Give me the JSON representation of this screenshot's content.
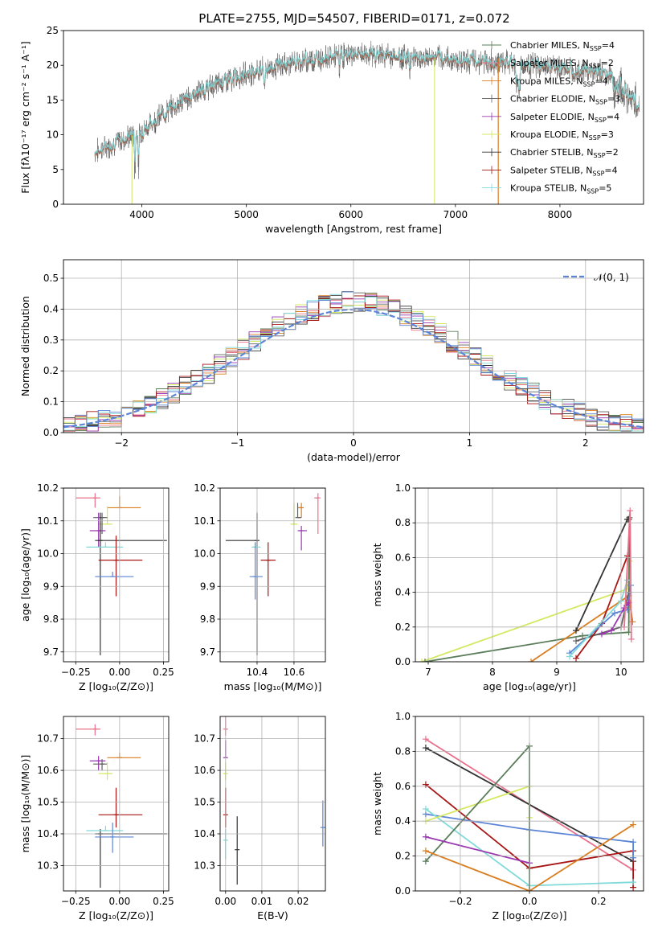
{
  "title": "PLATE=2755, MJD=54507, FIBERID=0171, z=0.072",
  "colors": {
    "chabrier_miles": "#5a7d5a",
    "salpeter_miles": "#e8708a",
    "kroupa_miles": "#d97d1f",
    "chabrier_elodie": "#5f5f5f",
    "salpeter_elodie": "#9a36b0",
    "kroupa_elodie": "#d4e860",
    "chabrier_stelib": "#333333",
    "salpeter_stelib": "#a81616",
    "kroupa_stelib": "#80dada",
    "model_line": "#5b84d6"
  },
  "chart_data": [
    {
      "id": "spectrum",
      "type": "line",
      "xlabel": "wavelength [Angstrom, rest frame]",
      "ylabel": "Flux [fλ10⁻¹⁷ erg cm⁻² s⁻¹ A⁻¹]",
      "xlim": [
        3250,
        8800
      ],
      "ylim": [
        0,
        25
      ],
      "xticks": [
        "4000",
        "5000",
        "6000",
        "7000",
        "8000"
      ],
      "yticks": [
        "0",
        "5",
        "10",
        "15",
        "20",
        "25"
      ],
      "grid": false,
      "legend_position": "top-right",
      "continuum": {
        "x": [
          3550,
          3700,
          3850,
          4000,
          4200,
          4400,
          4600,
          4800,
          5000,
          5200,
          5400,
          5600,
          5800,
          6000,
          6200,
          6400,
          6600,
          6800,
          7000,
          7200,
          7400,
          7600,
          7800,
          8000,
          8200,
          8400,
          8600,
          8760
        ],
        "y": [
          7.5,
          8.5,
          9.5,
          10.5,
          13,
          15,
          16.5,
          17.8,
          18.8,
          19.5,
          20.2,
          20.8,
          21.2,
          21.5,
          21.6,
          21.3,
          21.1,
          21,
          20.8,
          20.6,
          20.4,
          20.2,
          19.9,
          19.6,
          19.3,
          19,
          18.3,
          16
        ]
      },
      "series": [
        {
          "label": "Chabrier MILES, N",
          "sub": "SSP",
          "tail": "=4",
          "color": "#5a7d5a"
        },
        {
          "label": "Salpeter MILES, N",
          "sub": "SSP",
          "tail": "=2",
          "color": "#e8708a"
        },
        {
          "label": "Kroupa MILES, N",
          "sub": "SSP",
          "tail": "=4",
          "color": "#d97d1f"
        },
        {
          "label": "Chabrier ELODIE, N",
          "sub": "SSP",
          "tail": "=3",
          "color": "#5f5f5f"
        },
        {
          "label": "Salpeter ELODIE, N",
          "sub": "SSP",
          "tail": "=4",
          "color": "#9a36b0"
        },
        {
          "label": "Kroupa ELODIE, N",
          "sub": "SSP",
          "tail": "=3",
          "color": "#d4e860"
        },
        {
          "label": "Chabrier STELIB, N",
          "sub": "SSP",
          "tail": "=2",
          "color": "#333333"
        },
        {
          "label": "Salpeter STELIB, N",
          "sub": "SSP",
          "tail": "=4",
          "color": "#a81616"
        },
        {
          "label": "Kroupa STELIB, N",
          "sub": "SSP",
          "tail": "=5",
          "color": "#80dada"
        }
      ]
    },
    {
      "id": "residuals",
      "type": "histogram",
      "xlabel": "(data-model)/error",
      "ylabel": "Normed distribution",
      "xlim": [
        -2.5,
        2.5
      ],
      "ylim": [
        0,
        0.56
      ],
      "xticks": [
        "−2",
        "−1",
        "0",
        "1",
        "2"
      ],
      "yticks": [
        "0.0",
        "0.1",
        "0.2",
        "0.3",
        "0.4",
        "0.5"
      ],
      "grid": true,
      "bin_width": 0.1,
      "legend": "𝒩(0, 1)",
      "legend_position": "top-right"
    },
    {
      "id": "age_vs_Z",
      "type": "errorbar",
      "xlabel": "Z [log₁₀(Z/Z⊙)]",
      "ylabel": "age  [log₁₀(age/yr)]",
      "xlim": [
        -0.32,
        0.28
      ],
      "ylim": [
        9.67,
        10.2
      ],
      "xticks": [
        "−0.25",
        "0.00",
        "0.25"
      ],
      "yticks": [
        "9.7",
        "9.8",
        "9.9",
        "10.0",
        "10.1",
        "10.2"
      ],
      "points": [
        {
          "color": "#e8708a",
          "x": -0.14,
          "xerr": [
            0.11,
            0.03
          ],
          "y": 10.17,
          "yerr": [
            0.03,
            0.0
          ]
        },
        {
          "color": "#d97d1f",
          "x": 0.0,
          "xerr": [
            0.07,
            0.12
          ],
          "y": 10.14,
          "yerr": [
            0.0,
            0.02
          ]
        },
        {
          "color": "#d4e860",
          "x": -0.07,
          "xerr": [
            0.05,
            0.03
          ],
          "y": 10.09,
          "yerr": [
            0.0,
            0.04
          ]
        },
        {
          "color": "#5f5f5f",
          "x": -0.1,
          "xerr": [
            0.05,
            0.03
          ],
          "y": 10.11,
          "yerr": [
            0.05,
            0.0
          ]
        },
        {
          "color": "#9a36b0",
          "x": -0.12,
          "xerr": [
            0.05,
            0.04
          ],
          "y": 10.07,
          "yerr": [
            0.05,
            0.04
          ]
        },
        {
          "color": "#333333",
          "x": -0.11,
          "xerr": [
            0.03,
            0.38
          ],
          "y": 10.04,
          "yerr": [
            0.35,
            0.07
          ]
        },
        {
          "color": "#80dada",
          "x": -0.08,
          "xerr": [
            0.11,
            0.1
          ],
          "y": 10.02,
          "yerr": [
            0.0,
            0.0
          ]
        },
        {
          "color": "#a81616",
          "x": -0.02,
          "xerr": [
            0.1,
            0.15
          ],
          "y": 9.98,
          "yerr": [
            0.11,
            0.06
          ]
        },
        {
          "color": "#5b84d6",
          "x": -0.04,
          "xerr": [
            0.1,
            0.12
          ],
          "y": 9.93,
          "yerr": [
            0.0,
            0.0
          ]
        }
      ]
    },
    {
      "id": "age_vs_mass",
      "type": "errorbar",
      "xlabel": "mass [log₁₀(M/M⊙)]",
      "ylabel": "",
      "xlim": [
        10.2,
        10.77
      ],
      "ylim": [
        9.67,
        10.2
      ],
      "xticks": [
        "10.4",
        "10.6"
      ],
      "yticks": [
        "9.7",
        "9.8",
        "9.9",
        "10.0",
        "10.1",
        "10.2"
      ],
      "points": [
        {
          "color": "#e8708a",
          "x": 10.73,
          "xerr": [
            0.02,
            0.0
          ],
          "y": 10.17,
          "yerr": [
            0.11,
            0.0
          ]
        },
        {
          "color": "#d97d1f",
          "x": 10.64,
          "xerr": [
            0.02,
            0.0
          ],
          "y": 10.14,
          "yerr": [
            0.03,
            0.0
          ]
        },
        {
          "color": "#d4e860",
          "x": 10.6,
          "xerr": [
            0.02,
            0.02
          ],
          "y": 10.09,
          "yerr": [
            0.0,
            0.05
          ]
        },
        {
          "color": "#5f5f5f",
          "x": 10.62,
          "xerr": [
            0.0,
            0.02
          ],
          "y": 10.11,
          "yerr": [
            0.0,
            0.03
          ]
        },
        {
          "color": "#9a36b0",
          "x": 10.64,
          "xerr": [
            0.02,
            0.03
          ],
          "y": 10.07,
          "yerr": [
            0.06,
            0.0
          ]
        },
        {
          "color": "#333333",
          "x": 10.4,
          "xerr": [
            0.17,
            0.0
          ],
          "y": 10.04,
          "yerr": [
            0.35,
            0.07
          ]
        },
        {
          "color": "#80dada",
          "x": 10.39,
          "xerr": [
            0.02,
            0.03
          ],
          "y": 10.02,
          "yerr": [
            0.0,
            0.0
          ]
        },
        {
          "color": "#a81616",
          "x": 10.46,
          "xerr": [
            0.04,
            0.04
          ],
          "y": 9.98,
          "yerr": [
            0.11,
            0.04
          ]
        },
        {
          "color": "#5b84d6",
          "x": 10.39,
          "xerr": [
            0.03,
            0.04
          ],
          "y": 9.93,
          "yerr": [
            0.07,
            0.09
          ]
        }
      ]
    },
    {
      "id": "weight_vs_age",
      "type": "line",
      "xlabel": "age  [log₁₀(age/yr)]",
      "ylabel": "mass weight",
      "xlim": [
        6.8,
        10.35
      ],
      "ylim": [
        0,
        1
      ],
      "xticks": [
        "7",
        "8",
        "9",
        "10"
      ],
      "yticks": [
        "0.0",
        "0.2",
        "0.4",
        "0.6",
        "0.8",
        "1.0"
      ],
      "series": [
        {
          "color": "#d4e860",
          "x": [
            6.9,
            10.1,
            10.13
          ],
          "y": [
            0.0,
            0.42,
            0.58
          ]
        },
        {
          "color": "#5a7d5a",
          "x": [
            6.95,
            9.4,
            10.12,
            10.13
          ],
          "y": [
            0.0,
            0.15,
            0.17,
            0.83
          ]
        },
        {
          "color": "#d97d1f",
          "x": [
            8.6,
            10.12,
            10.18
          ],
          "y": [
            0.0,
            0.38,
            0.23
          ]
        },
        {
          "color": "#333333",
          "x": [
            9.3,
            10.1,
            10.12
          ],
          "y": [
            0.18,
            0.82,
            0.82
          ]
        },
        {
          "color": "#5f5f5f",
          "x": [
            9.3,
            10.0,
            10.12
          ],
          "y": [
            0.12,
            0.2,
            0.4
          ]
        },
        {
          "color": "#a81616",
          "x": [
            9.3,
            9.7,
            10.1
          ],
          "y": [
            0.02,
            0.22,
            0.61
          ]
        },
        {
          "color": "#5b84d6",
          "x": [
            9.2,
            9.9,
            10.1,
            10.15
          ],
          "y": [
            0.05,
            0.28,
            0.3,
            0.44
          ]
        },
        {
          "color": "#80dada",
          "x": [
            9.2,
            10.0,
            10.1
          ],
          "y": [
            0.03,
            0.35,
            0.47
          ]
        },
        {
          "color": "#9a36b0",
          "x": [
            9.7,
            9.85,
            10.05,
            10.12
          ],
          "y": [
            0.16,
            0.18,
            0.31,
            0.34
          ]
        },
        {
          "color": "#e8708a",
          "x": [
            10.05,
            10.14,
            10.16
          ],
          "y": [
            0.2,
            0.87,
            0.13
          ]
        }
      ]
    },
    {
      "id": "mass_vs_Z",
      "type": "errorbar",
      "xlabel": "Z [log₁₀(Z/Z⊙)]",
      "ylabel": "mass [log₁₀(M/M⊙)]",
      "xlim": [
        -0.32,
        0.28
      ],
      "ylim": [
        10.22,
        10.77
      ],
      "xticks": [
        "−0.25",
        "0.00",
        "0.25"
      ],
      "yticks": [
        "10.3",
        "10.4",
        "10.5",
        "10.6",
        "10.7"
      ],
      "points": [
        {
          "color": "#e8708a",
          "x": -0.14,
          "xerr": [
            0.11,
            0.03
          ],
          "y": 10.73,
          "yerr": [
            0.02,
            0.0
          ]
        },
        {
          "color": "#d97d1f",
          "x": 0.0,
          "xerr": [
            0.07,
            0.12
          ],
          "y": 10.64,
          "yerr": [
            0.0,
            0.0
          ]
        },
        {
          "color": "#9a36b0",
          "x": -0.12,
          "xerr": [
            0.05,
            0.04
          ],
          "y": 10.63,
          "yerr": [
            0.03,
            0.0
          ]
        },
        {
          "color": "#5f5f5f",
          "x": -0.1,
          "xerr": [
            0.05,
            0.03
          ],
          "y": 10.62,
          "yerr": [
            0.02,
            0.0
          ]
        },
        {
          "color": "#d4e860",
          "x": -0.07,
          "xerr": [
            0.05,
            0.03
          ],
          "y": 10.59,
          "yerr": [
            0.02,
            0.02
          ]
        },
        {
          "color": "#a81616",
          "x": -0.02,
          "xerr": [
            0.1,
            0.15
          ],
          "y": 10.46,
          "yerr": [
            0.04,
            0.07
          ]
        },
        {
          "color": "#333333",
          "x": -0.11,
          "xerr": [
            0.03,
            0.38
          ],
          "y": 10.4,
          "yerr": [
            0.17,
            0.0
          ]
        },
        {
          "color": "#80dada",
          "x": -0.08,
          "xerr": [
            0.11,
            0.1
          ],
          "y": 10.41,
          "yerr": [
            0.0,
            0.0
          ]
        },
        {
          "color": "#5b84d6",
          "x": -0.04,
          "xerr": [
            0.1,
            0.12
          ],
          "y": 10.39,
          "yerr": [
            0.05,
            0.03
          ]
        }
      ]
    },
    {
      "id": "mass_vs_EBV",
      "type": "errorbar",
      "xlabel": "E(B-V)",
      "ylabel": "",
      "xlim": [
        -0.0015,
        0.0275
      ],
      "ylim": [
        10.22,
        10.77
      ],
      "xticks": [
        "0.00",
        "0.01",
        "0.02"
      ],
      "yticks": [
        "10.3",
        "10.4",
        "10.5",
        "10.6",
        "10.7"
      ],
      "points": [
        {
          "color": "#e8708a",
          "x": 0.0,
          "xerr": [
            0,
            0
          ],
          "y": 10.73,
          "yerr": [
            0.02,
            0.03
          ]
        },
        {
          "color": "#9a36b0",
          "x": 0.0,
          "xerr": [
            0,
            0
          ],
          "y": 10.64,
          "yerr": [
            0.0,
            0.04
          ]
        },
        {
          "color": "#d4e860",
          "x": 0.0,
          "xerr": [
            0,
            0
          ],
          "y": 10.59,
          "yerr": [
            0.02,
            0.02
          ]
        },
        {
          "color": "#a81616",
          "x": 0.0,
          "xerr": [
            0,
            0
          ],
          "y": 10.46,
          "yerr": [
            0.04,
            0.07
          ]
        },
        {
          "color": "#80dada",
          "x": 0.0,
          "xerr": [
            0,
            0
          ],
          "y": 10.38,
          "yerr": [
            0.06,
            0.02
          ]
        },
        {
          "color": "#333333",
          "x": 0.0032,
          "xerr": [
            0,
            0
          ],
          "y": 10.35,
          "yerr": [
            0.11,
            0.09
          ]
        },
        {
          "color": "#5b84d6",
          "x": 0.0268,
          "xerr": [
            0,
            0
          ],
          "y": 10.42,
          "yerr": [
            0.06,
            0.07
          ]
        }
      ]
    },
    {
      "id": "weight_vs_Z",
      "type": "line",
      "xlabel": "Z [log₁₀(Z/Z⊙)]",
      "ylabel": "mass weight",
      "xlim": [
        -0.33,
        0.33
      ],
      "ylim": [
        0,
        1
      ],
      "xticks": [
        "−0.2",
        "0.0",
        "0.2"
      ],
      "yticks": [
        "0.0",
        "0.2",
        "0.4",
        "0.6",
        "0.8",
        "1.0"
      ],
      "series": [
        {
          "color": "#e8708a",
          "x": [
            -0.3,
            0.3
          ],
          "y": [
            0.87,
            0.12
          ]
        },
        {
          "color": "#333333",
          "x": [
            -0.3,
            0.3
          ],
          "y": [
            0.82,
            0.17
          ]
        },
        {
          "color": "#a81616",
          "x": [
            -0.3,
            0.0,
            0.3,
            0.3
          ],
          "y": [
            0.61,
            0.13,
            0.23,
            0.02
          ]
        },
        {
          "color": "#5b84d6",
          "x": [
            -0.3,
            0.0,
            0.3,
            0.3
          ],
          "y": [
            0.44,
            0.35,
            0.28,
            0.19
          ]
        },
        {
          "color": "#80dada",
          "x": [
            -0.3,
            0.0,
            0.3
          ],
          "y": [
            0.47,
            0.03,
            0.05
          ]
        },
        {
          "color": "#d4e860",
          "x": [
            -0.3,
            0.0,
            0.0
          ],
          "y": [
            0.4,
            0.6,
            0.42
          ]
        },
        {
          "color": "#5a7d5a",
          "x": [
            -0.3,
            0.0,
            0.0
          ],
          "y": [
            0.17,
            0.83,
            0.0
          ]
        },
        {
          "color": "#d97d1f",
          "x": [
            -0.3,
            0.0,
            0.3
          ],
          "y": [
            0.23,
            0.0,
            0.38
          ]
        },
        {
          "color": "#9a36b0",
          "x": [
            -0.3,
            0.0
          ],
          "y": [
            0.31,
            0.16
          ]
        }
      ]
    }
  ]
}
